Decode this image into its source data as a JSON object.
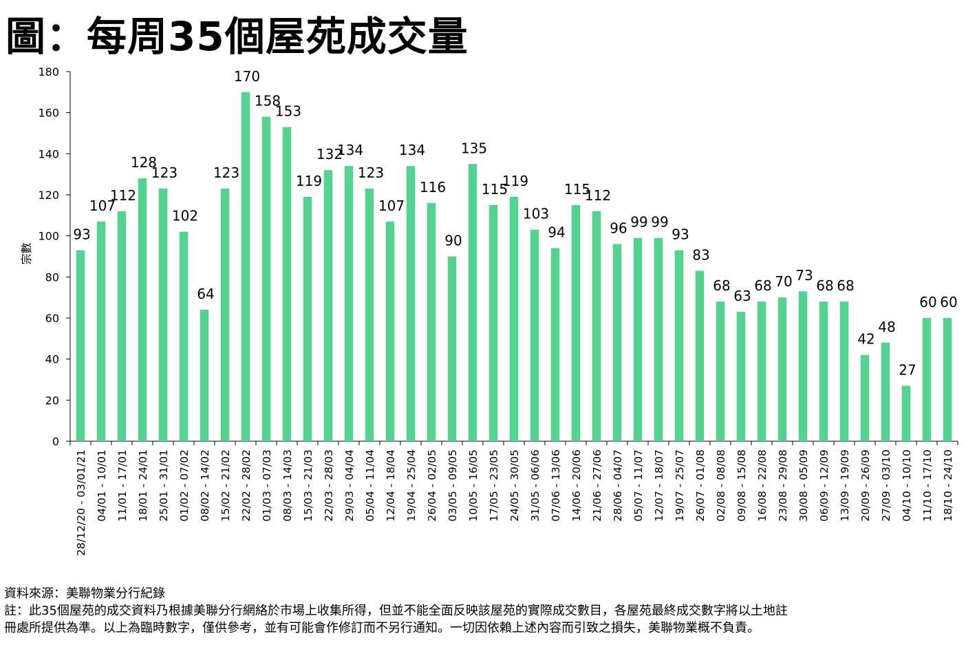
{
  "title": "圖：每周35個屋苑成交量",
  "colors": {
    "bar": "#55d28f",
    "axis": "#000000"
  },
  "chart_data": {
    "type": "bar",
    "title": "圖：每周35個屋苑成交量",
    "xlabel": "",
    "ylabel": "宗數",
    "ylim": [
      0,
      180
    ],
    "yticks": [
      0,
      20,
      40,
      60,
      80,
      100,
      120,
      140,
      160,
      180
    ],
    "grid": false,
    "legend": "none",
    "categories": [
      "28/12/20 - 03/01/21",
      "04/01 - 10/01",
      "11/01 - 17/01",
      "18/01 - 24/01",
      "25/01 - 31/01",
      "01/02 - 07/02",
      "08/02 - 14/02",
      "15/02 - 21/02",
      "22/02 - 28/02",
      "01/03 - 07/03",
      "08/03 - 14/03",
      "15/03 - 21/03",
      "22/03 - 28/03",
      "29/03 - 04/04",
      "05/04 - 11/04",
      "12/04 - 18/04",
      "19/04 - 25/04",
      "26/04 - 02/05",
      "03/05 - 09/05",
      "10/05 - 16/05",
      "17/05 - 23/05",
      "24/05 - 30/05",
      "31/05 - 06/06",
      "07/06 - 13/06",
      "14/06 - 20/06",
      "21/06 - 27/06",
      "28/06 - 04/07",
      "05/07 - 11/07",
      "12/07 - 18/07",
      "19/07 - 25/07",
      "26/07 - 01/08",
      "02/08 - 08/08",
      "09/08 - 15/08",
      "16/08 - 22/08",
      "23/08 - 29/08",
      "30/08 - 05/09",
      "06/09 - 12/09",
      "13/09 - 19/09",
      "20/09 - 26/09",
      "27/09 - 03/10",
      "04/10 - 10/10",
      "11/10 - 17/10",
      "18/10 - 24/10"
    ],
    "values": [
      93,
      107,
      112,
      128,
      123,
      102,
      64,
      123,
      170,
      158,
      153,
      119,
      132,
      134,
      123,
      107,
      134,
      116,
      90,
      135,
      115,
      119,
      103,
      94,
      115,
      112,
      96,
      99,
      99,
      93,
      83,
      68,
      63,
      68,
      70,
      73,
      68,
      68,
      42,
      48,
      27,
      60,
      60
    ]
  },
  "footer": {
    "source": "資料來源：美聯物業分行紀錄",
    "note_line1": "註：此35個屋苑的成交資料乃根據美聯分行網絡於市場上收集所得，但並不能全面反映該屋苑的實際成交數目，各屋苑最終成交數字將以土地註",
    "note_line2": "冊處所提供為準。以上為臨時數字，僅供參考，並有可能會作修訂而不另行通知。一切因依賴上述內容而引致之損失，美聯物業概不負責。"
  }
}
